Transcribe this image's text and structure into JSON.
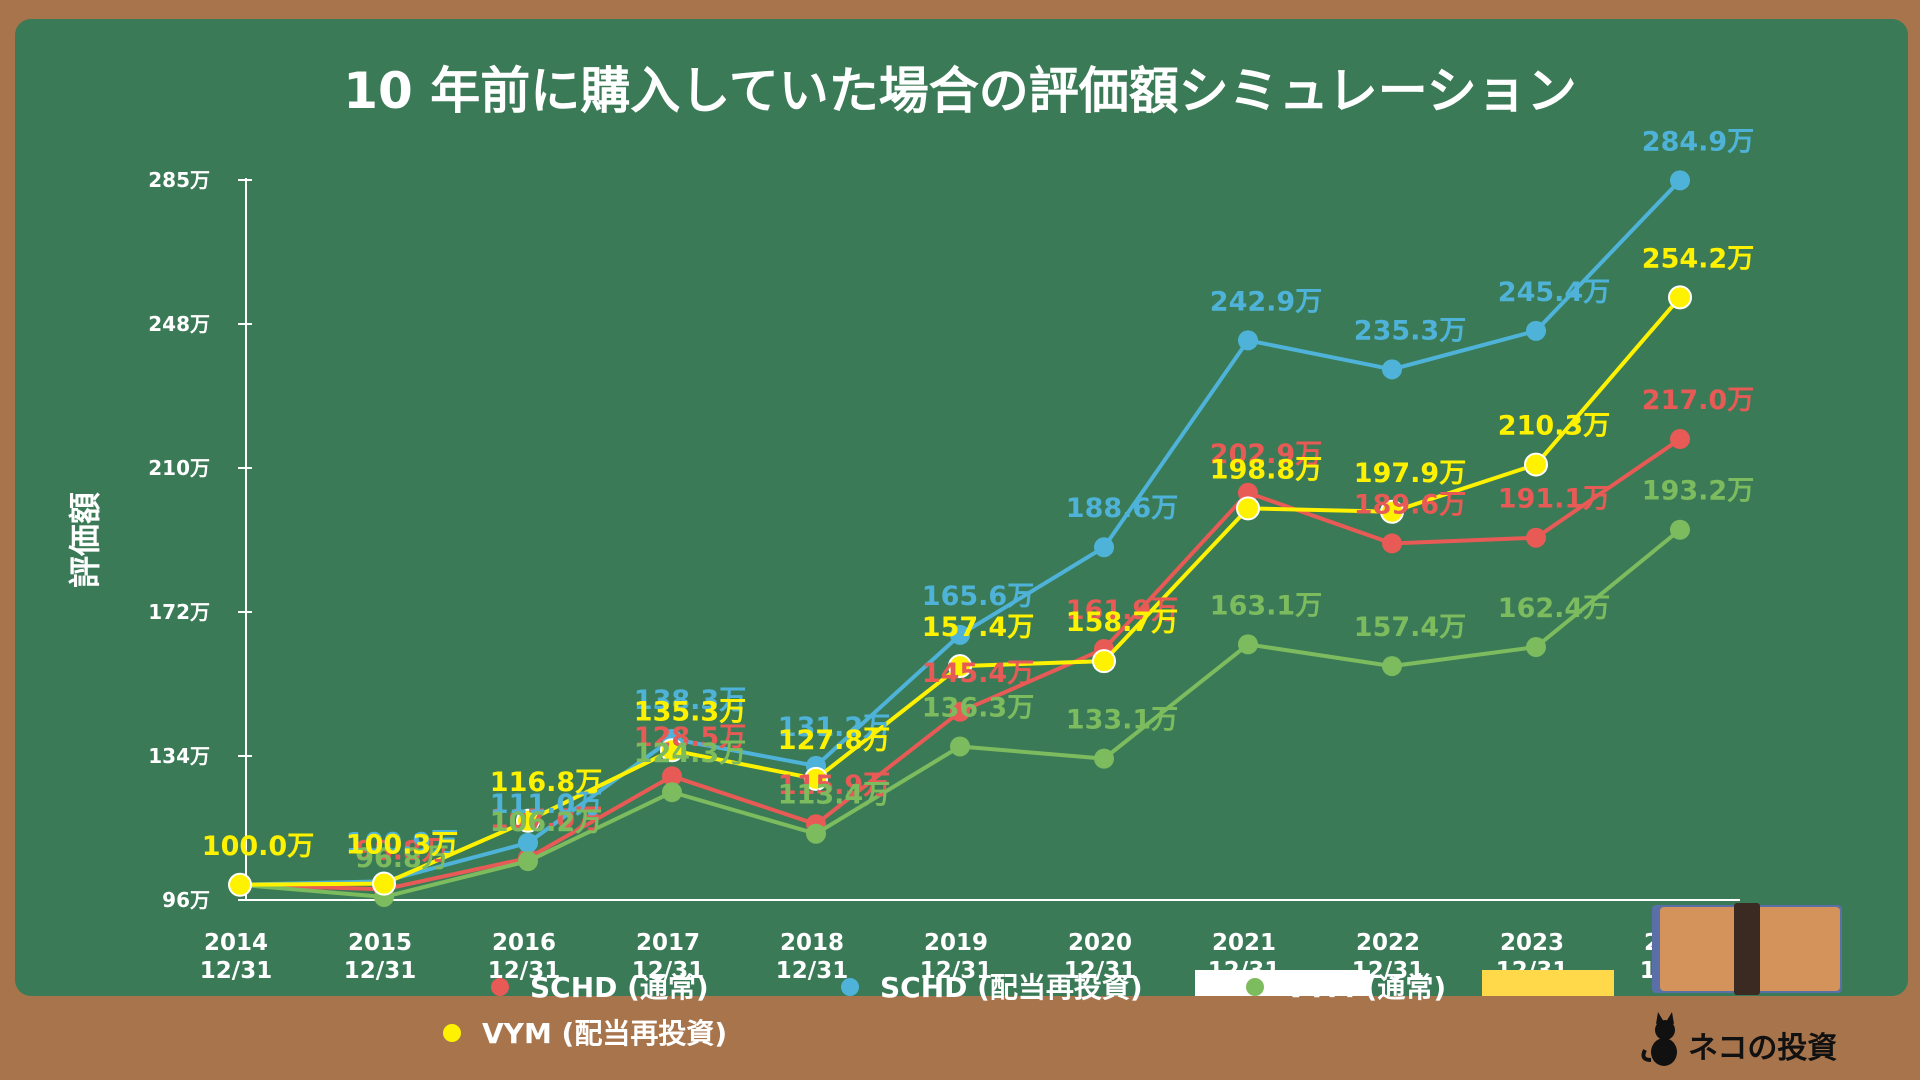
{
  "chart_data": {
    "type": "line",
    "title": "10 年前に購入していた場合の評価額シミュレーション",
    "ylabel": "評価額",
    "xlabel": "",
    "ylim": [
      96,
      285
    ],
    "y_ticks": [
      "96万",
      "134万",
      "172万",
      "210万",
      "248万",
      "285万"
    ],
    "categories": [
      "2014\n12/31",
      "2015\n12/31",
      "2016\n12/31",
      "2017\n12/31",
      "2018\n12/31",
      "2019\n12/31",
      "2020\n12/31",
      "2021\n12/31",
      "2022\n12/31",
      "2023\n12/31",
      "2024\n12/06"
    ],
    "grid": false,
    "legend_position": "bottom",
    "series": [
      {
        "name": "SCHD (通常)",
        "color": "#e85a55",
        "values": [
          100.0,
          98.8,
          107.0,
          128.5,
          115.9,
          145.4,
          161.9,
          202.9,
          189.6,
          191.1,
          217.0
        ],
        "labels": [
          "100.0万",
          "98.8万",
          "107.0万",
          "128.5万",
          "115.9万",
          "145.4万",
          "161.9万",
          "202.9万",
          "189.6万",
          "191.1万",
          "217.0万"
        ]
      },
      {
        "name": "SCHD (配当再投資)",
        "color": "#4fb3d9",
        "values": [
          100.0,
          100.9,
          111.0,
          138.3,
          131.2,
          165.6,
          188.6,
          242.9,
          235.3,
          245.4,
          284.9
        ],
        "labels": [
          "100.0万",
          "100.9万",
          "111.0万",
          "138.3万",
          "131.2万",
          "165.6万",
          "188.6万",
          "242.9万",
          "235.3万",
          "245.4万",
          "284.9万"
        ]
      },
      {
        "name": "VYM (通常)",
        "color": "#7dbb5f",
        "values": [
          100.0,
          96.8,
          106.2,
          124.3,
          113.4,
          136.3,
          133.1,
          163.1,
          157.4,
          162.4,
          193.2
        ],
        "labels": [
          "100.0万",
          "96.8万",
          "106.2万",
          "124.3万",
          "113.4万",
          "136.3万",
          "133.1万",
          "163.1万",
          "157.4万",
          "162.4万",
          "193.2万"
        ]
      },
      {
        "name": "VYM (配当再投資)",
        "color": "#fff200",
        "values": [
          100.0,
          100.3,
          116.8,
          135.3,
          127.8,
          157.4,
          158.7,
          198.8,
          197.9,
          210.3,
          254.2
        ],
        "labels": [
          "100.0万",
          "100.3万",
          "116.8万",
          "135.3万",
          "127.8万",
          "157.4万",
          "158.7万",
          "198.8万",
          "197.9万",
          "210.3万",
          "254.2万"
        ]
      }
    ]
  },
  "brand": {
    "name": "ネコの投資",
    "icon": "cat-icon"
  }
}
